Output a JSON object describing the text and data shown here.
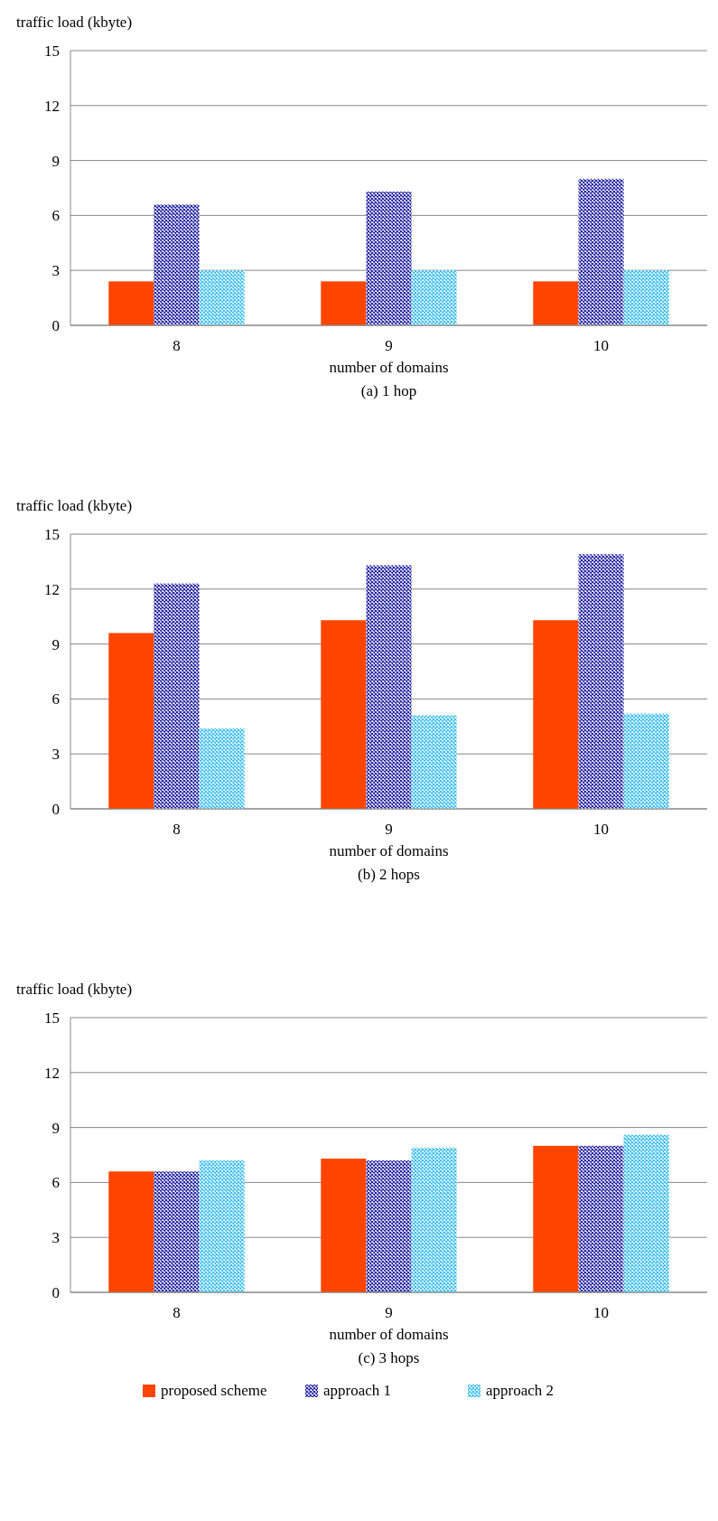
{
  "chart_data": [
    {
      "type": "bar",
      "title": "(a) 1 hop",
      "xlabel": "number of domains",
      "ylabel": "traffic load (kbyte)",
      "categories": [
        "8",
        "9",
        "10"
      ],
      "series": [
        {
          "color": "#ff4500",
          "values": [
            2.4,
            2.4,
            2.4
          ]
        },
        {
          "color": "#1a1aa0",
          "values": [
            6.6,
            7.3,
            8.0
          ]
        },
        {
          "color": "#33bbee",
          "values": [
            3.0,
            3.0,
            3.0
          ]
        }
      ],
      "ylim": [
        0,
        15
      ],
      "yticks": [
        0,
        3,
        6,
        9,
        12,
        15
      ],
      "grid": "y"
    },
    {
      "type": "bar",
      "title": "(b) 2 hops",
      "xlabel": "number of domains",
      "ylabel": "traffic load (kbyte)",
      "categories": [
        "8",
        "9",
        "10"
      ],
      "series": [
        {
          "color": "#ff4500",
          "values": [
            9.6,
            10.3,
            10.3
          ]
        },
        {
          "color": "#1a1aa0",
          "values": [
            12.3,
            13.3,
            13.9
          ]
        },
        {
          "color": "#33bbee",
          "values": [
            4.4,
            5.1,
            5.2
          ]
        }
      ],
      "ylim": [
        0,
        15
      ],
      "yticks": [
        0,
        3,
        6,
        9,
        12,
        15
      ],
      "grid": "y"
    },
    {
      "type": "bar",
      "title": "(c) 3 hops",
      "xlabel": "number of domains",
      "ylabel": "traffic load (kbyte)",
      "categories": [
        "8",
        "9",
        "10"
      ],
      "series": [
        {
          "name": "proposed scheme",
          "color": "#ff4500",
          "values": [
            6.6,
            7.3,
            8.0
          ]
        },
        {
          "name": "approach 1",
          "color": "#1a1aa0",
          "values": [
            6.6,
            7.2,
            8.0
          ]
        },
        {
          "name": "approach 2",
          "color": "#33bbee",
          "values": [
            7.2,
            7.9,
            8.6
          ]
        }
      ],
      "ylim": [
        0,
        15
      ],
      "yticks": [
        0,
        3,
        6,
        9,
        12,
        15
      ],
      "grid": "y",
      "legend": "bottom"
    }
  ]
}
